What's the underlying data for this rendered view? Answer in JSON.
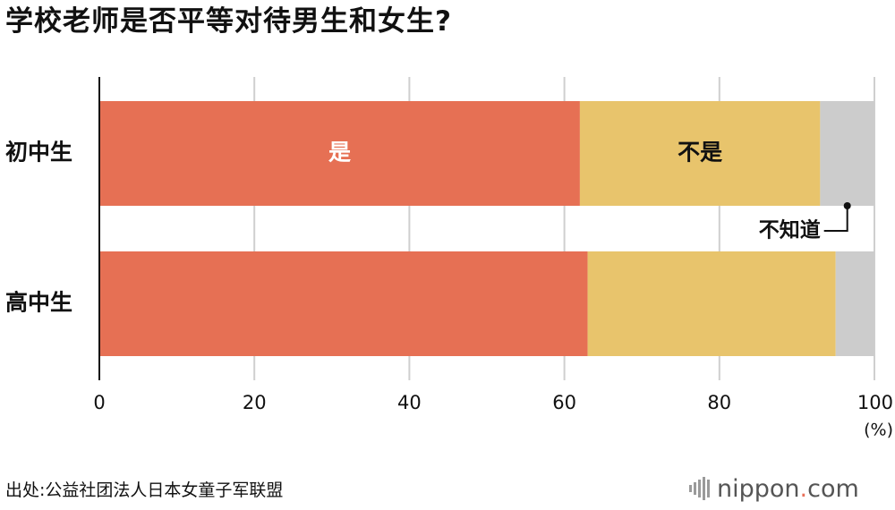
{
  "title": "学校老师是否平等对待男生和女生?",
  "source": "出处:公益社团法人日本女童子军联盟",
  "logo": {
    "name": "nippon",
    "dot": ".",
    "tld": "com"
  },
  "colors": {
    "yes": "#e67054",
    "no": "#e8c46c",
    "dontknow": "#cccccc",
    "grid": "#cfcfcf",
    "axis": "#111111",
    "label_light": "#ffffff",
    "label_dark": "#111111"
  },
  "chart_data": {
    "type": "bar",
    "orientation": "horizontal",
    "stacked": true,
    "categories": [
      "初中生",
      "高中生"
    ],
    "series": [
      {
        "name": "是",
        "values": [
          62,
          63
        ]
      },
      {
        "name": "不是",
        "values": [
          31,
          32
        ]
      },
      {
        "name": "不知道",
        "values": [
          7,
          5
        ]
      }
    ],
    "xlim": [
      0,
      100
    ],
    "xticks": [
      0,
      20,
      40,
      60,
      80,
      100
    ],
    "xunit": "(%)",
    "grid": true
  }
}
